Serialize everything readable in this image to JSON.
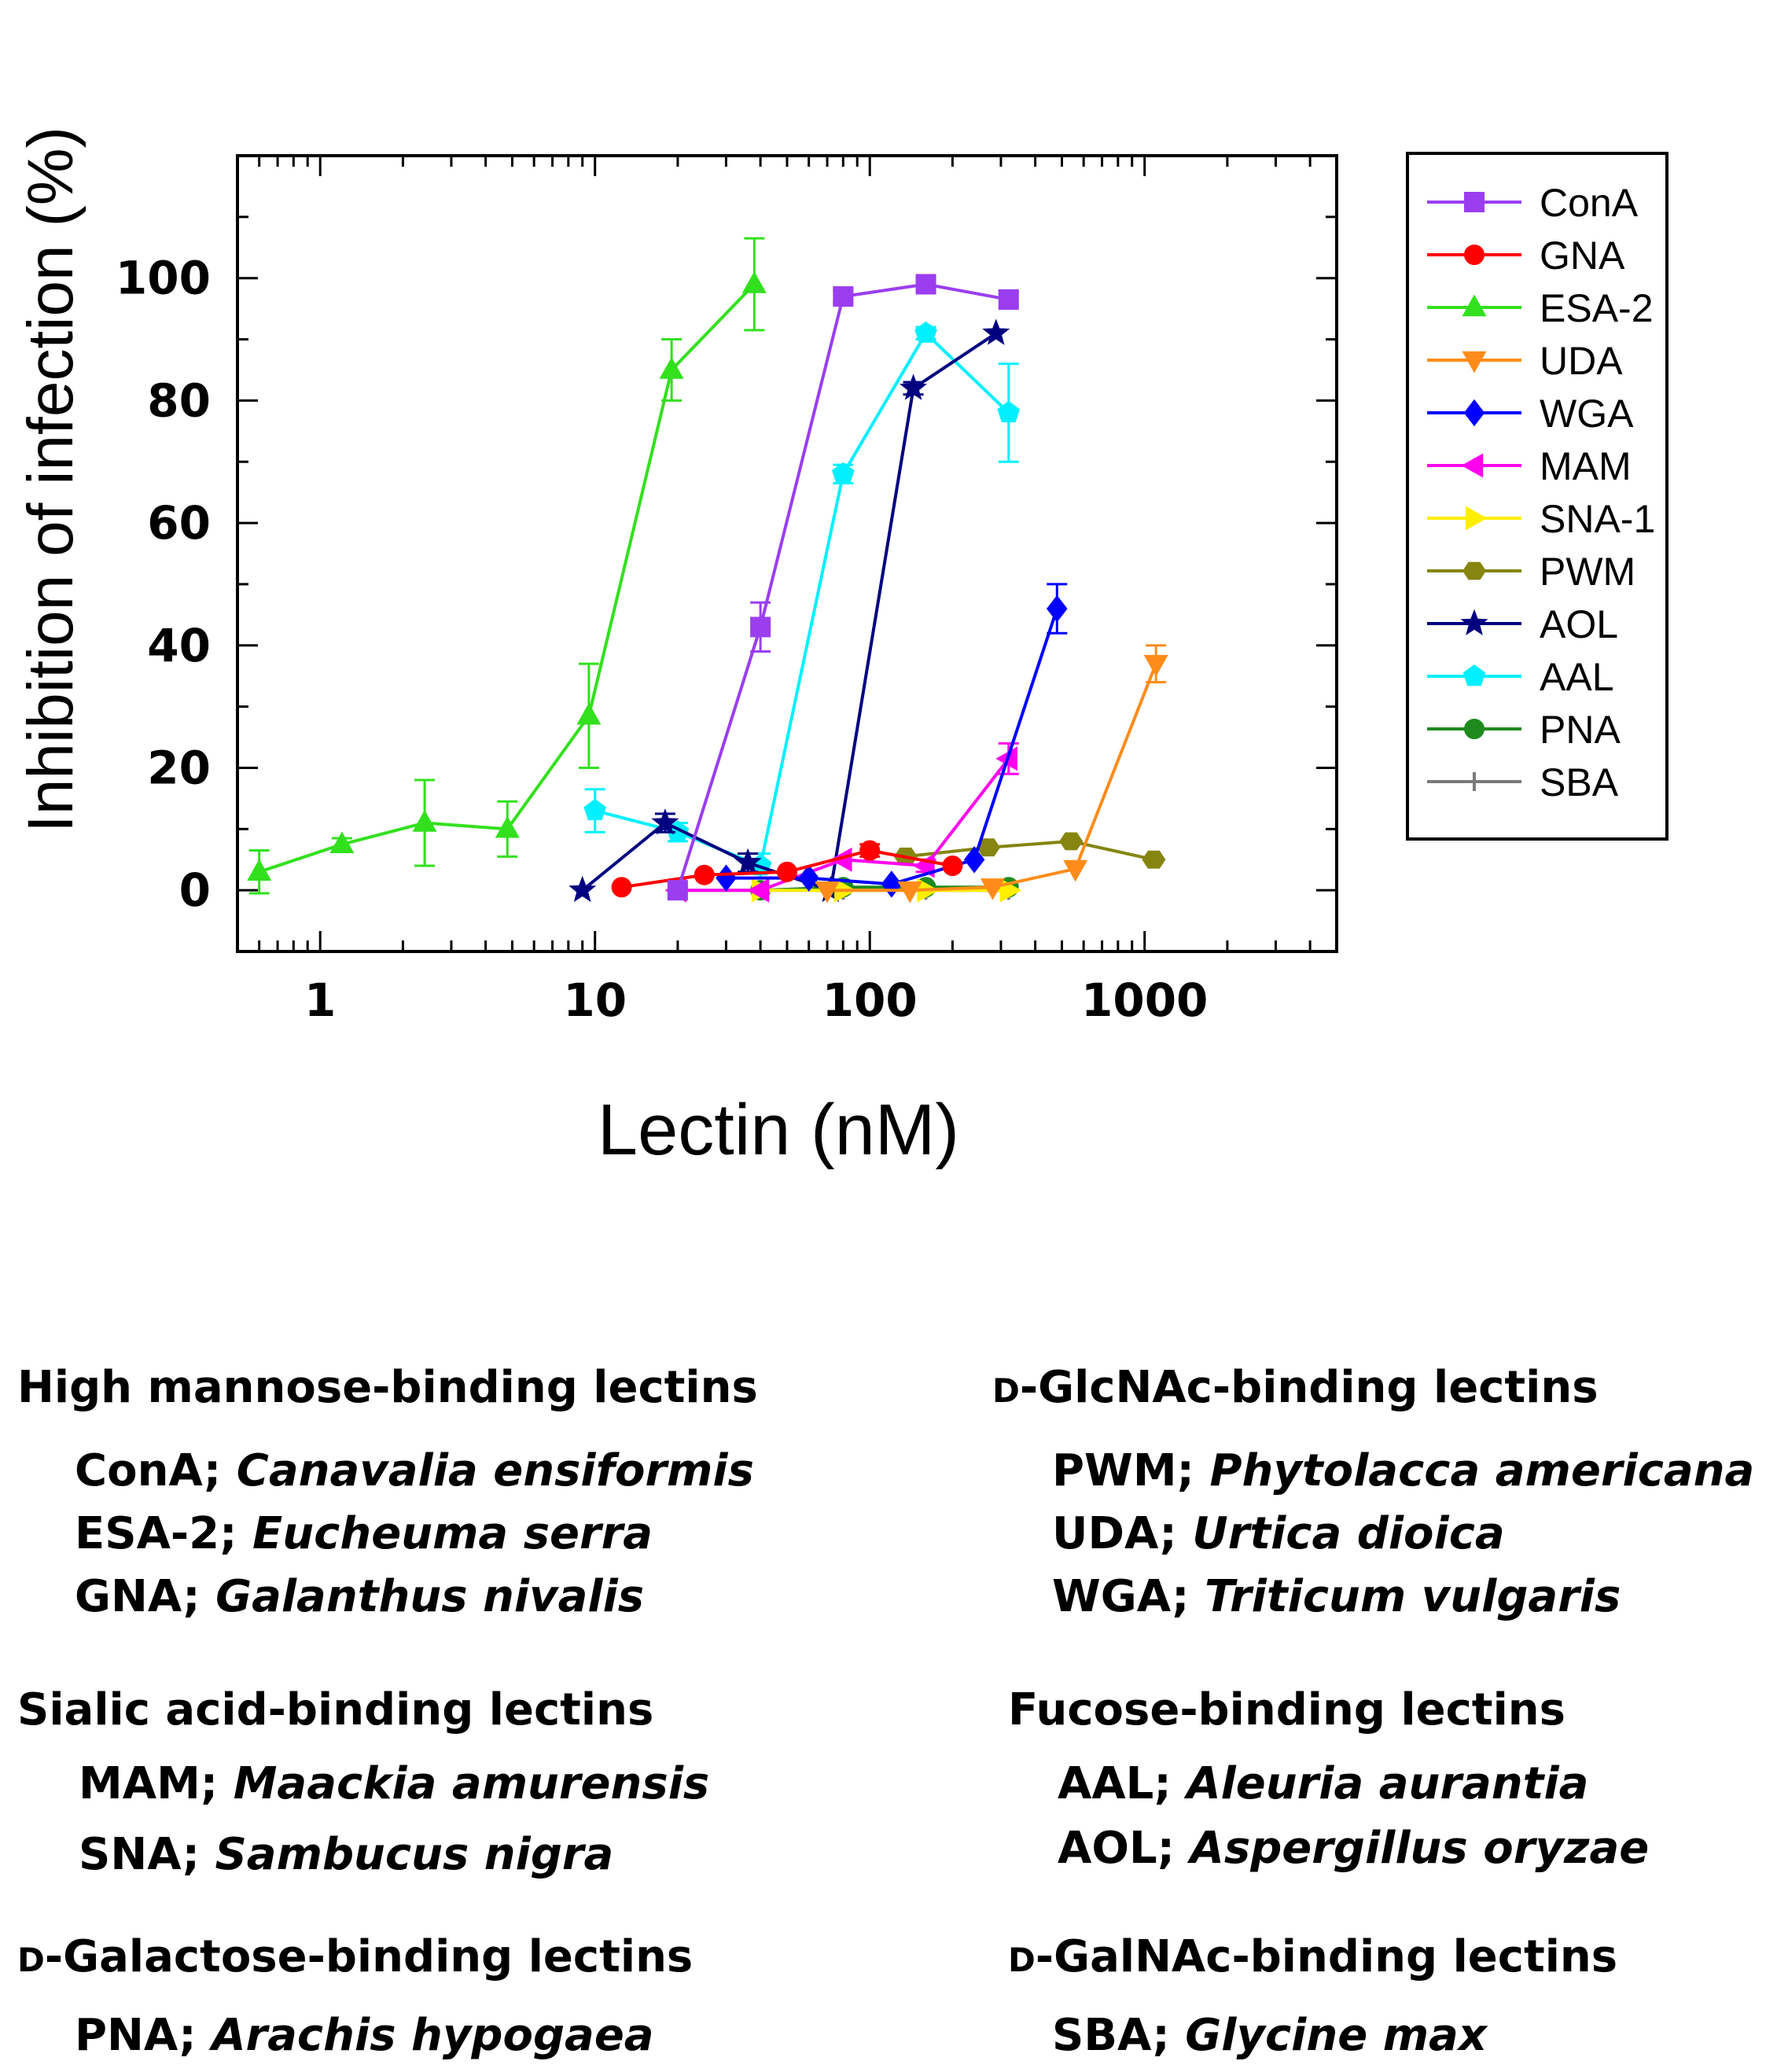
{
  "chart_data": {
    "type": "line",
    "title": "",
    "xlabel": "Lectin (nM)",
    "ylabel": "Inhibition of infection (%)",
    "x_scale": "log",
    "xlim": [
      0.5,
      5000
    ],
    "ylim": [
      -10,
      120
    ],
    "x_ticks": [
      1,
      10,
      100,
      1000
    ],
    "x_tick_labels": [
      "1",
      "10",
      "100",
      "1000"
    ],
    "y_ticks": [
      0,
      20,
      40,
      60,
      80,
      100
    ],
    "y_tick_labels": [
      "0",
      "20",
      "40",
      "60",
      "80",
      "100"
    ],
    "grid": false,
    "legend_position": "top-right",
    "series": [
      {
        "name": "ConA",
        "color": "#9a3ef0",
        "marker": "square",
        "x": [
          20,
          40,
          80,
          160,
          320
        ],
        "y": [
          0,
          43,
          97,
          99,
          96.5
        ],
        "err": [
          0,
          4,
          1,
          1,
          1
        ]
      },
      {
        "name": "GNA",
        "color": "#ff0000",
        "marker": "circle",
        "x": [
          12.5,
          25,
          50,
          100,
          200
        ],
        "y": [
          0.5,
          2.5,
          3,
          6.5,
          4
        ],
        "err": [
          0,
          0,
          0,
          1,
          0
        ]
      },
      {
        "name": "ESA-2",
        "color": "#33e01e",
        "marker": "triangle-up",
        "x": [
          0.6,
          1.2,
          2.4,
          4.8,
          9.5,
          19,
          38
        ],
        "y": [
          3,
          7.5,
          11,
          10,
          28.5,
          85,
          99
        ],
        "err": [
          3.5,
          1,
          7,
          4.5,
          8.5,
          5,
          7.5
        ]
      },
      {
        "name": "UDA",
        "color": "#ff8c1a",
        "marker": "triangle-down",
        "x": [
          70,
          140,
          280,
          560,
          1100
        ],
        "y": [
          0,
          0,
          0.5,
          3.5,
          37
        ],
        "err": [
          0,
          0,
          0,
          0,
          3
        ]
      },
      {
        "name": "WGA",
        "color": "#0000ff",
        "marker": "diamond",
        "x": [
          30,
          60,
          120,
          240,
          480
        ],
        "y": [
          2,
          2,
          1,
          5,
          46
        ],
        "err": [
          0,
          0,
          0,
          0,
          4
        ]
      },
      {
        "name": "MAM",
        "color": "#ff00ee",
        "marker": "triangle-left",
        "x": [
          20,
          40,
          80,
          160,
          320
        ],
        "y": [
          0,
          0,
          5,
          4,
          21.5
        ],
        "err": [
          0,
          0,
          0,
          1,
          2.5
        ]
      },
      {
        "name": "SNA-1",
        "color": "#ffee00",
        "marker": "triangle-right",
        "x": [
          40,
          80,
          160,
          320
        ],
        "y": [
          0,
          0,
          0,
          0
        ],
        "err": [
          0,
          0,
          0,
          0
        ]
      },
      {
        "name": "PWM",
        "color": "#858510",
        "marker": "hexagon",
        "x": [
          135,
          270,
          540,
          1080
        ],
        "y": [
          5.5,
          7,
          8,
          5
        ],
        "err": [
          0,
          0,
          0,
          0
        ]
      },
      {
        "name": "AOL",
        "color": "#000080",
        "marker": "star",
        "x": [
          9,
          18,
          36,
          72,
          144,
          288
        ],
        "y": [
          0,
          11,
          4.5,
          0,
          82,
          91
        ],
        "err": [
          0,
          1.5,
          1.5,
          0,
          1,
          0
        ]
      },
      {
        "name": "AAL",
        "color": "#00f0ff",
        "marker": "pentagon",
        "x": [
          10,
          20,
          40,
          80,
          160,
          320
        ],
        "y": [
          13,
          9.5,
          4,
          68,
          91,
          78
        ],
        "err": [
          3.5,
          1.5,
          2,
          1.5,
          1,
          8
        ]
      },
      {
        "name": "PNA",
        "color": "#1e8a1e",
        "marker": "circle",
        "x": [
          40,
          80,
          160,
          320
        ],
        "y": [
          0,
          0.5,
          0.5,
          0.5
        ],
        "err": [
          0,
          0,
          0,
          0
        ]
      },
      {
        "name": "SBA",
        "color": "#7a7a7a",
        "marker": "plus",
        "x": [
          20,
          40,
          80,
          160,
          320
        ],
        "y": [
          0,
          0,
          0,
          0,
          0
        ],
        "err": [
          0,
          0,
          0,
          0,
          0
        ]
      }
    ]
  },
  "groups": {
    "high_mannose": {
      "title": "High mannose-binding lectins",
      "items": [
        {
          "abbr": "ConA; ",
          "species": "Canavalia ensiformis"
        },
        {
          "abbr": "ESA-2; ",
          "species": "Eucheuma serra"
        },
        {
          "abbr": "GNA; ",
          "species": "Galanthus nivalis"
        }
      ]
    },
    "glcnac": {
      "prefix": "D",
      "title": "-GlcNAc-binding lectins",
      "items": [
        {
          "abbr": "PWM; ",
          "species": "Phytolacca americana"
        },
        {
          "abbr": "UDA; ",
          "species": "Urtica dioica"
        },
        {
          "abbr": "WGA; ",
          "species": "Triticum vulgaris"
        }
      ]
    },
    "sialic": {
      "title": "Sialic acid-binding lectins",
      "items": [
        {
          "abbr": "MAM; ",
          "species": "Maackia amurensis"
        },
        {
          "abbr": "SNA; ",
          "species": "Sambucus nigra"
        }
      ]
    },
    "fucose": {
      "title": "Fucose-binding lectins",
      "items": [
        {
          "abbr": "AAL; ",
          "species": "Aleuria aurantia"
        },
        {
          "abbr": "AOL; ",
          "species": "Aspergillus oryzae"
        }
      ]
    },
    "galactose": {
      "prefix": "D",
      "title": "-Galactose-binding lectins",
      "items": [
        {
          "abbr": "PNA; ",
          "species": "Arachis hypogaea"
        }
      ]
    },
    "galnac": {
      "prefix": "D",
      "title": "-GalNAc-binding lectins",
      "items": [
        {
          "abbr": "SBA; ",
          "species": "Glycine max"
        }
      ]
    }
  }
}
